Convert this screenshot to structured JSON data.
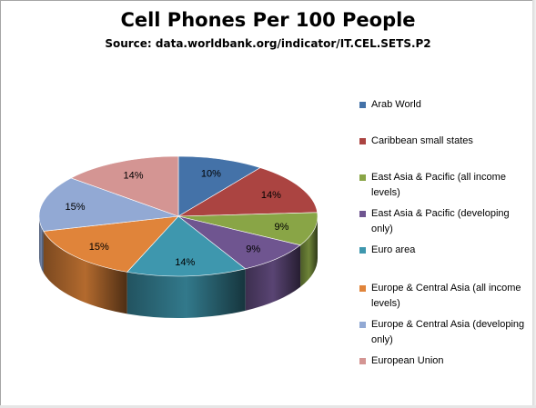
{
  "chart_data": {
    "type": "pie",
    "title": "Cell Phones Per 100 People",
    "subtitle": "Source: data.worldbank.org/indicator/IT.CEL.SETS.P2",
    "legend_position": "right",
    "categories": [
      "Arab World",
      "Caribbean small states",
      "East Asia & Pacific (all income levels)",
      "East Asia & Pacific (developing only)",
      "Euro area",
      "Europe & Central Asia (all income levels)",
      "Europe & Central Asia (developing only)",
      "European Union"
    ],
    "values": [
      10,
      14,
      9,
      9,
      14,
      15,
      15,
      14
    ],
    "data_labels": [
      "10%",
      "14%",
      "9%",
      "9%",
      "14%",
      "15%",
      "15%",
      "14%"
    ],
    "colors": [
      "#4472a8",
      "#ab4441",
      "#89a546",
      "#6f5590",
      "#3e97ae",
      "#e0843a",
      "#92a9d4",
      "#d49593"
    ]
  }
}
